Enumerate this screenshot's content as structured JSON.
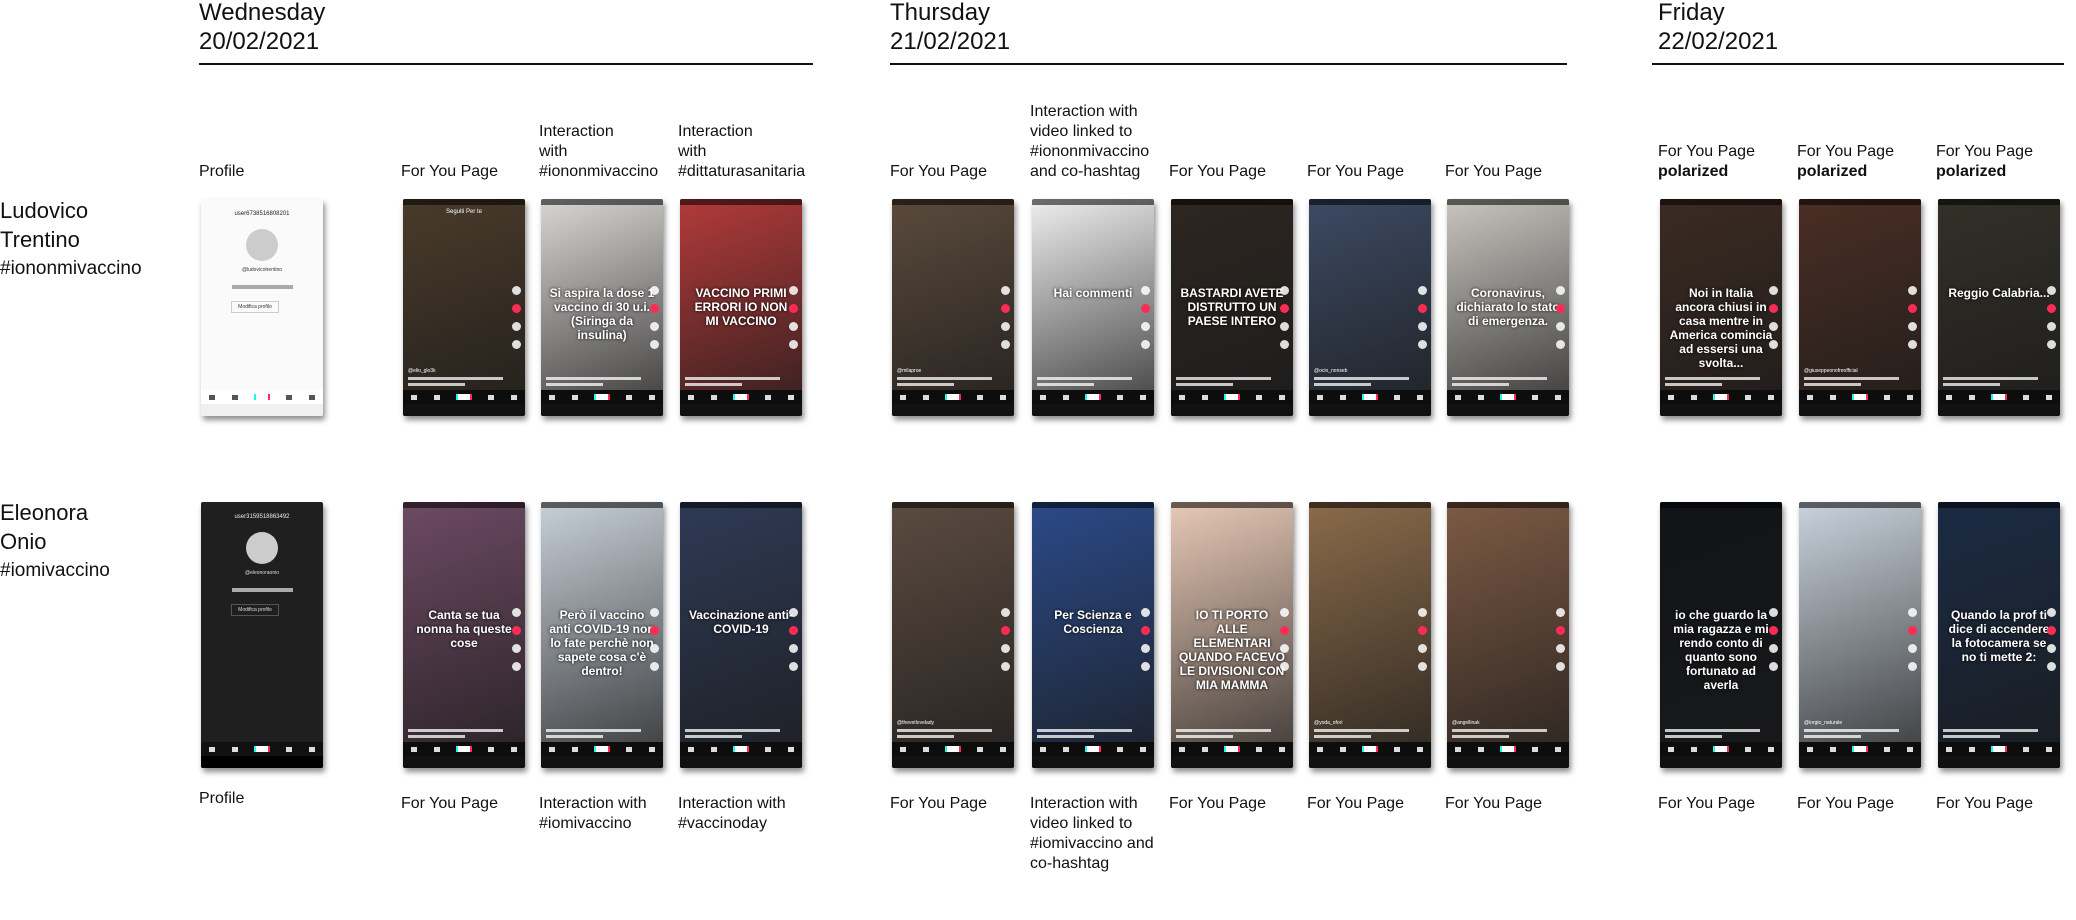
{
  "days": [
    {
      "weekday": "Wednesday",
      "date": "20/02/2021"
    },
    {
      "weekday": "Thursday",
      "date": "21/02/2021"
    },
    {
      "weekday": "Friday",
      "date": "22/02/2021"
    }
  ],
  "users": [
    {
      "first": "Ludovico",
      "last": "Trentino",
      "tag": "#iononmivaccino"
    },
    {
      "first": "Eleonora",
      "last": "Onio",
      "tag": "#iomivaccino"
    }
  ],
  "row1": {
    "labels": [
      [
        "Profile"
      ],
      [
        "For You Page"
      ],
      [
        "Interaction",
        "with",
        "#iononmivaccino"
      ],
      [
        "Interaction",
        "with",
        "#dittaturasanitaria"
      ],
      [
        "For You Page"
      ],
      [
        "Interaction with",
        "video linked to",
        "#iononmivaccino",
        "and co-hashtag"
      ],
      [
        "For You Page"
      ],
      [
        "For You Page"
      ],
      [
        "For You Page"
      ],
      [
        "For You Page",
        "polarized"
      ],
      [
        "For You Page",
        "polarized"
      ],
      [
        "For You Page",
        "polarized"
      ]
    ],
    "screens": [
      {
        "username": "user6738516808201",
        "handle": "@ludovicotrentino",
        "edit": "Modifica profilo"
      },
      {
        "handle": "@elio_glo3k",
        "top": "Seguiti Per te"
      },
      {
        "title": "Si aspira la dose 1 vaccino di 30 u.i. (Siringa da insulina)"
      },
      {
        "title": "VACCINO PRIMI ERRORI IO NON MI VACCINO"
      },
      {
        "handle": "@milaproe"
      },
      {
        "title": "Hai commenti"
      },
      {
        "title": "BASTARDI AVETE DISTRUTTO UN PAESE INTERO"
      },
      {
        "handle": "@ocio_nonseb"
      },
      {
        "title": "Coronavirus, dichiarato lo stato di emergenza."
      },
      {
        "title": "Noi in Italia ancora chiusi in casa mentre in America comincia ad essersi una svolta..."
      },
      {
        "handle": "@giuseppeonofreofficial"
      },
      {
        "title": "Reggio Calabria..."
      }
    ]
  },
  "row2": {
    "labels": [
      [
        "Profile"
      ],
      [
        "For You Page"
      ],
      [
        "Interaction with",
        "#iomivaccino"
      ],
      [
        "Interaction with",
        "#vaccinoday"
      ],
      [
        "For You Page"
      ],
      [
        "Interaction with",
        "video linked to",
        "#iomivaccino and",
        "co-hashtag"
      ],
      [
        "For You Page"
      ],
      [
        "For You Page"
      ],
      [
        "For You Page"
      ],
      [
        "For You Page"
      ],
      [
        "For You Page"
      ],
      [
        "For You Page"
      ]
    ],
    "screens": [
      {
        "username": "user3159518863492",
        "handle": "@eleonoraonio",
        "edit": "Modifica profilo"
      },
      {
        "title": "Canta se tua nonna ha queste cose"
      },
      {
        "title": "Però il vaccino anti COVID-19 non lo fate perchè non sapete cosa c'è dentro!"
      },
      {
        "title": "Vaccinazione anti-COVID-19"
      },
      {
        "handle": "@thevetlovelady"
      },
      {
        "title": "Per Scienza e Coscienza"
      },
      {
        "title": "IO TI PORTO ALLE ELEMENTARI QUANDO FACEVO LE DIVISIONI CON MIA MAMMA"
      },
      {
        "handle": "@yoda_ofori"
      },
      {
        "handle": "@angellinak"
      },
      {
        "title": "io che guardo la mia ragazza e mi rendo conto di quanto sono fortunato ad averla"
      },
      {
        "handle": "@iorgio_naturale"
      },
      {
        "title": "Quando la prof ti dice di accendere la fotocamera se no ti mette 2:"
      }
    ]
  },
  "colors": {
    "text": "#111111",
    "tiktok_red": "#fe2c55",
    "tiktok_cyan": "#25f4ee"
  }
}
